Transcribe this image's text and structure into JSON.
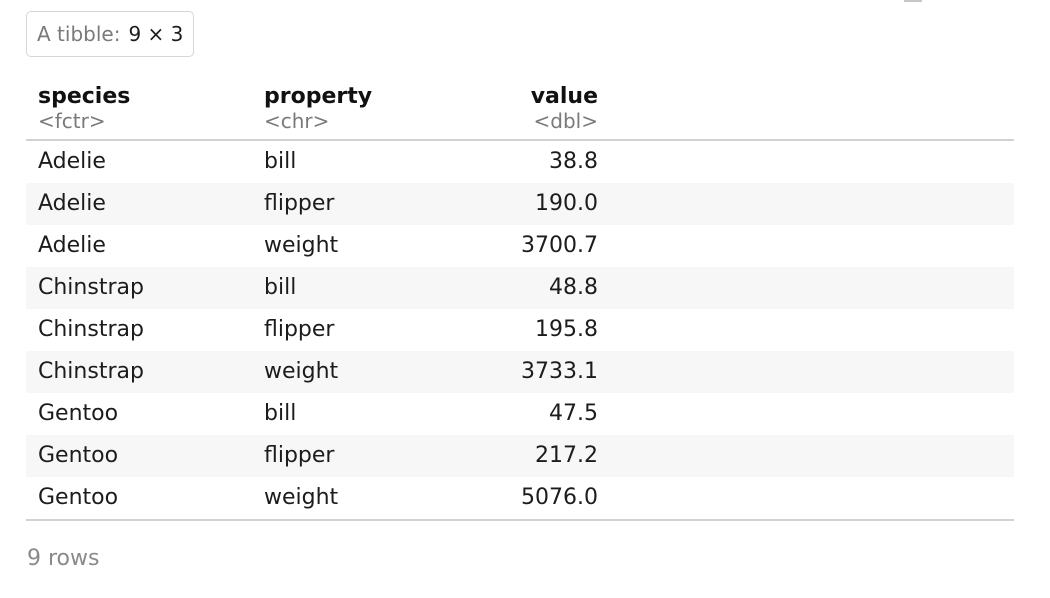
{
  "caption": {
    "label": "A tibble:",
    "dims": "9 × 3"
  },
  "columns": [
    {
      "name": "species",
      "type": "<fctr>"
    },
    {
      "name": "property",
      "type": "<chr>"
    },
    {
      "name": "value",
      "type": "<dbl>"
    }
  ],
  "rows": [
    {
      "species": "Adelie",
      "property": "bill",
      "value": "38.8"
    },
    {
      "species": "Adelie",
      "property": "flipper",
      "value": "190.0"
    },
    {
      "species": "Adelie",
      "property": "weight",
      "value": "3700.7"
    },
    {
      "species": "Chinstrap",
      "property": "bill",
      "value": "48.8"
    },
    {
      "species": "Chinstrap",
      "property": "flipper",
      "value": "195.8"
    },
    {
      "species": "Chinstrap",
      "property": "weight",
      "value": "3733.1"
    },
    {
      "species": "Gentoo",
      "property": "bill",
      "value": "47.5"
    },
    {
      "species": "Gentoo",
      "property": "flipper",
      "value": "217.2"
    },
    {
      "species": "Gentoo",
      "property": "weight",
      "value": "5076.0"
    }
  ],
  "footer": {
    "row_count": "9 rows"
  }
}
